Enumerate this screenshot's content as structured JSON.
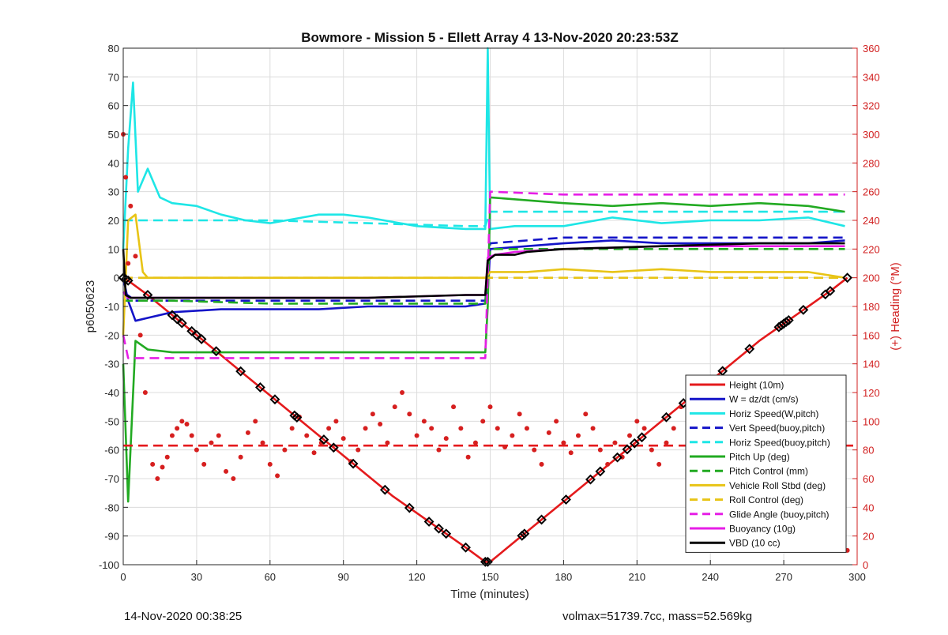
{
  "footer": {
    "timestamp": "14-Nov-2020 00:38:25",
    "volmax_mass": "volmax=51739.7cc, mass=52.569kg"
  },
  "chart_data": {
    "type": "line",
    "title": "Bowmore - Mission 5 - Ellett Array 4 13-Nov-2020 20:23:53Z",
    "xlabel": "Time (minutes)",
    "ylabel": "p6050623",
    "y2label": "(+) Heading (°M)",
    "xlim": [
      0,
      300
    ],
    "ylim": [
      -100,
      80
    ],
    "y2lim": [
      0,
      360
    ],
    "xticks": [
      0,
      30,
      60,
      90,
      120,
      150,
      180,
      210,
      240,
      270,
      300
    ],
    "yticks": [
      -100,
      -90,
      -80,
      -70,
      -60,
      -50,
      -40,
      -30,
      -20,
      -10,
      0,
      10,
      20,
      30,
      40,
      50,
      60,
      70,
      80
    ],
    "y2ticks": [
      0,
      20,
      40,
      60,
      80,
      100,
      120,
      140,
      160,
      180,
      200,
      220,
      240,
      260,
      280,
      300,
      320,
      340,
      360
    ],
    "grid": true,
    "legend_position": "bottom-right",
    "colors": {
      "axis_left": "#262626",
      "axis_right": "#d11f1f",
      "grid": "#dcdcdc"
    },
    "series": [
      {
        "name": "Height (10m)",
        "color": "#e41a1c",
        "style": "solid",
        "x": [
          0,
          2,
          10,
          20,
          30,
          40,
          50,
          60,
          70,
          80,
          90,
          100,
          110,
          120,
          130,
          140,
          148,
          150,
          160,
          170,
          180,
          190,
          200,
          210,
          220,
          230,
          240,
          250,
          260,
          270,
          280,
          290,
          296
        ],
        "y": [
          0,
          -1,
          -6,
          -13,
          -20,
          -27,
          -34,
          -41,
          -48,
          -55,
          -62,
          -69,
          -76,
          -82,
          -88,
          -94,
          -99,
          -99,
          -92,
          -85,
          -78,
          -71,
          -64,
          -57,
          -50,
          -43,
          -36,
          -29,
          -22,
          -16,
          -10,
          -4,
          0
        ]
      },
      {
        "name": "W = dz/dt (cm/s)",
        "color": "#1414c8",
        "style": "solid",
        "x": [
          0,
          2,
          5,
          10,
          20,
          40,
          60,
          80,
          100,
          120,
          140,
          148,
          149,
          150,
          165,
          180,
          200,
          220,
          240,
          260,
          280,
          295
        ],
        "y": [
          0,
          -8,
          -15,
          -14,
          -12,
          -11,
          -11,
          -11,
          -10,
          -10,
          -10,
          -9,
          -5,
          10,
          11,
          12,
          13,
          12,
          12,
          12,
          12,
          13
        ]
      },
      {
        "name": "Horiz Speed(W,pitch)",
        "color": "#1ee6e6",
        "style": "solid",
        "x": [
          0,
          2,
          4,
          6,
          10,
          15,
          20,
          30,
          40,
          50,
          60,
          80,
          90,
          100,
          120,
          140,
          148,
          149,
          150,
          160,
          180,
          200,
          220,
          240,
          260,
          280,
          295
        ],
        "y": [
          10,
          45,
          68,
          30,
          38,
          28,
          26,
          25,
          22,
          20,
          19,
          22,
          22,
          21,
          18,
          17,
          17,
          80,
          17,
          18,
          18,
          21,
          19,
          20,
          20,
          21,
          18
        ]
      },
      {
        "name": "Vert Speed(buoy,pitch)",
        "color": "#1414c8",
        "style": "dashed",
        "x": [
          0,
          5,
          20,
          60,
          100,
          140,
          148,
          150,
          180,
          220,
          260,
          295
        ],
        "y": [
          -5,
          -8,
          -8,
          -8,
          -8,
          -8,
          -8,
          12,
          14,
          14,
          14,
          14
        ]
      },
      {
        "name": "Horiz Speed(buoy,pitch)",
        "color": "#1ee6e6",
        "style": "dashed",
        "x": [
          0,
          5,
          20,
          60,
          100,
          140,
          148,
          150,
          180,
          220,
          260,
          295
        ],
        "y": [
          20,
          20,
          20,
          20,
          19,
          18,
          18,
          23,
          23,
          23,
          23,
          23
        ]
      },
      {
        "name": "Pitch Up (deg)",
        "color": "#22aa22",
        "style": "solid",
        "x": [
          0,
          2,
          5,
          10,
          20,
          40,
          60,
          80,
          100,
          120,
          140,
          148,
          149,
          150,
          165,
          180,
          200,
          220,
          240,
          260,
          280,
          295
        ],
        "y": [
          -30,
          -78,
          -22,
          -25,
          -26,
          -26,
          -26,
          -26,
          -26,
          -26,
          -26,
          -26,
          -10,
          28,
          27,
          26,
          25,
          26,
          25,
          26,
          25,
          23
        ]
      },
      {
        "name": "Pitch Control (mm)",
        "color": "#22aa22",
        "style": "dashed",
        "x": [
          0,
          5,
          20,
          60,
          100,
          140,
          148,
          150,
          180,
          220,
          260,
          295
        ],
        "y": [
          -8,
          -8,
          -8,
          -9,
          -9,
          -9,
          -9,
          10,
          10,
          10,
          10,
          10
        ]
      },
      {
        "name": "Vehicle Roll Stbd (deg)",
        "color": "#e8c416",
        "style": "solid",
        "x": [
          0,
          2,
          5,
          8,
          10,
          20,
          40,
          60,
          80,
          100,
          120,
          140,
          148,
          150,
          165,
          180,
          200,
          220,
          240,
          260,
          280,
          295
        ],
        "y": [
          -20,
          20,
          22,
          2,
          0,
          0,
          0,
          0,
          0,
          0,
          0,
          0,
          0,
          2,
          2,
          3,
          2,
          3,
          2,
          2,
          2,
          0
        ]
      },
      {
        "name": "Roll Control (deg)",
        "color": "#e8c416",
        "style": "dashed",
        "x": [
          0,
          20,
          60,
          100,
          140,
          150,
          180,
          220,
          260,
          295
        ],
        "y": [
          0,
          0,
          0,
          0,
          0,
          0,
          0,
          0,
          0,
          0
        ]
      },
      {
        "name": "Glide Angle (buoy,pitch)",
        "color": "#e61ee6",
        "style": "dashed",
        "x": [
          0,
          2,
          5,
          20,
          60,
          100,
          140,
          148,
          150,
          180,
          220,
          260,
          295
        ],
        "y": [
          -20,
          -28,
          -28,
          -28,
          -28,
          -28,
          -28,
          -28,
          30,
          29,
          29,
          29,
          29
        ]
      },
      {
        "name": "Buoyancy (10g)",
        "color": "#e61ee6",
        "style": "solid",
        "x": [
          0,
          2,
          20,
          60,
          100,
          140,
          148,
          149,
          152,
          160,
          180,
          220,
          260,
          295
        ],
        "y": [
          -5,
          -7,
          -7,
          -7,
          -7,
          -6,
          -6,
          7,
          8,
          9,
          10,
          11,
          11,
          11
        ]
      },
      {
        "name": "VBD (10 cc)",
        "color": "#000000",
        "style": "solid",
        "x": [
          0,
          1,
          3,
          20,
          60,
          100,
          140,
          148,
          149,
          152,
          160,
          165,
          180,
          220,
          260,
          295
        ],
        "y": [
          10,
          -6,
          -7,
          -7,
          -7,
          -7,
          -6,
          -6,
          6,
          8,
          8,
          9,
          10,
          11,
          12,
          12
        ]
      },
      {
        "name": "",
        "axis": "right",
        "color": "#e41a1c",
        "style": "dashed",
        "x": [
          0,
          300
        ],
        "y": [
          83,
          83
        ]
      }
    ],
    "heading_points": {
      "axis": "right",
      "color": "#d61f1f",
      "x": [
        0,
        1,
        2,
        3,
        5,
        7,
        9,
        12,
        14,
        16,
        18,
        20,
        22,
        24,
        26,
        28,
        30,
        33,
        36,
        39,
        42,
        45,
        48,
        51,
        54,
        57,
        60,
        63,
        66,
        69,
        72,
        75,
        78,
        81,
        84,
        87,
        90,
        93,
        96,
        99,
        102,
        105,
        108,
        111,
        114,
        117,
        120,
        123,
        126,
        129,
        132,
        135,
        138,
        141,
        144,
        147,
        150,
        153,
        156,
        159,
        162,
        165,
        168,
        171,
        174,
        177,
        180,
        183,
        186,
        189,
        192,
        195,
        198,
        201,
        204,
        207,
        210,
        213,
        216,
        219,
        222,
        225,
        228,
        231,
        234,
        237,
        240,
        243,
        246,
        249,
        252,
        255,
        258,
        261,
        264,
        267,
        270,
        273,
        276,
        279,
        282,
        285,
        288,
        291,
        294,
        296
      ],
      "y": [
        300,
        270,
        210,
        250,
        215,
        160,
        120,
        70,
        60,
        68,
        75,
        90,
        95,
        100,
        98,
        90,
        80,
        70,
        85,
        90,
        65,
        60,
        75,
        92,
        100,
        85,
        70,
        62,
        80,
        95,
        103,
        90,
        78,
        85,
        95,
        100,
        88,
        72,
        80,
        95,
        105,
        98,
        85,
        110,
        120,
        105,
        90,
        100,
        95,
        80,
        88,
        110,
        95,
        75,
        85,
        100,
        110,
        95,
        82,
        90,
        105,
        95,
        80,
        70,
        92,
        100,
        85,
        78,
        90,
        105,
        95,
        80,
        70,
        85,
        75,
        90,
        100,
        95,
        80,
        70,
        85,
        95,
        110,
        90,
        75,
        82,
        100,
        95,
        78,
        72,
        90,
        105,
        88,
        75,
        82,
        95,
        110,
        100,
        85,
        75,
        80,
        95,
        88,
        70,
        60,
        10
      ]
    },
    "markers": {
      "color": "#000000",
      "x": [
        0,
        1,
        2,
        10,
        20,
        22,
        24,
        28,
        30,
        32,
        38,
        48,
        56,
        62,
        70,
        71,
        82,
        86,
        94,
        107,
        117,
        125,
        129,
        132,
        140,
        148,
        149,
        163,
        164,
        171,
        181,
        191,
        195,
        202,
        206,
        209,
        212,
        222,
        229,
        234,
        245,
        256,
        268,
        269,
        270,
        271,
        272,
        278,
        287,
        289,
        296
      ]
    }
  }
}
